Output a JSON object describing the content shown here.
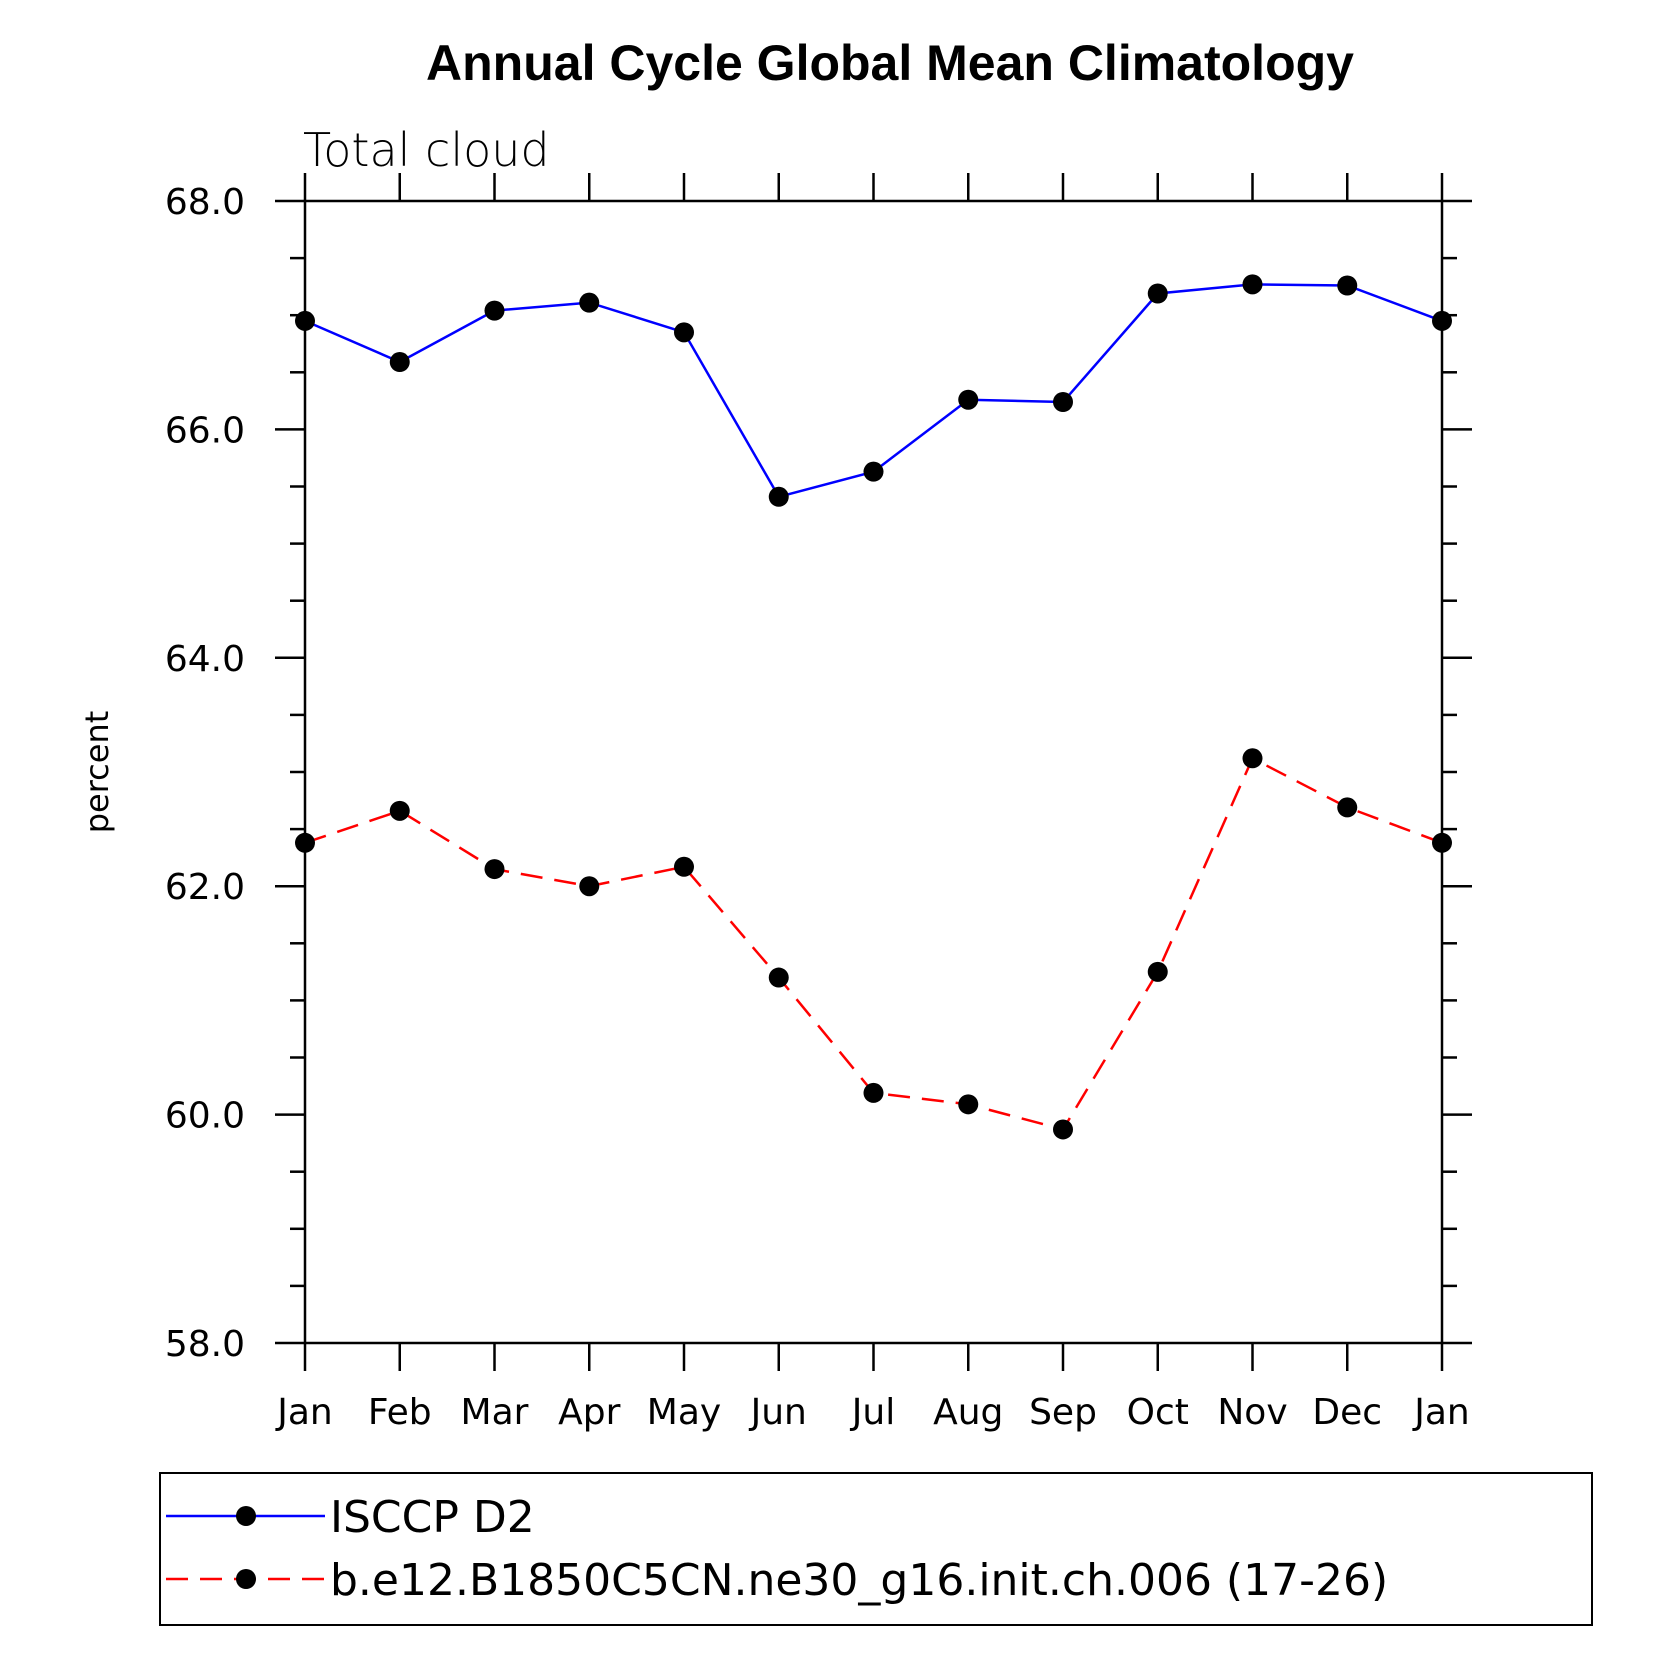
{
  "chart_data": {
    "type": "line",
    "title": "Annual Cycle Global Mean Climatology",
    "subtitle": "Total cloud",
    "xlabel": "",
    "ylabel": "percent",
    "categories": [
      "Jan",
      "Feb",
      "Mar",
      "Apr",
      "May",
      "Jun",
      "Jul",
      "Aug",
      "Sep",
      "Oct",
      "Nov",
      "Dec",
      "Jan"
    ],
    "ylim": [
      58.0,
      68.0
    ],
    "yticks": [
      "58.0",
      "60.0",
      "62.0",
      "64.0",
      "66.0",
      "68.0"
    ],
    "legend_position": "bottom",
    "series": [
      {
        "name": "ISCCP D2",
        "color": "#0000ff",
        "dash": "solid",
        "values": [
          66.95,
          66.59,
          67.04,
          67.11,
          66.85,
          65.41,
          65.63,
          66.26,
          66.24,
          67.19,
          67.27,
          67.26,
          66.95
        ]
      },
      {
        "name": "b.e12.B1850C5CN.ne30_g16.init.ch.006 (17-26)",
        "color": "#ff0000",
        "dash": "dashed",
        "values": [
          62.38,
          62.66,
          62.15,
          62.0,
          62.17,
          61.2,
          60.19,
          60.09,
          59.87,
          61.25,
          63.12,
          62.69,
          62.38
        ]
      }
    ]
  }
}
